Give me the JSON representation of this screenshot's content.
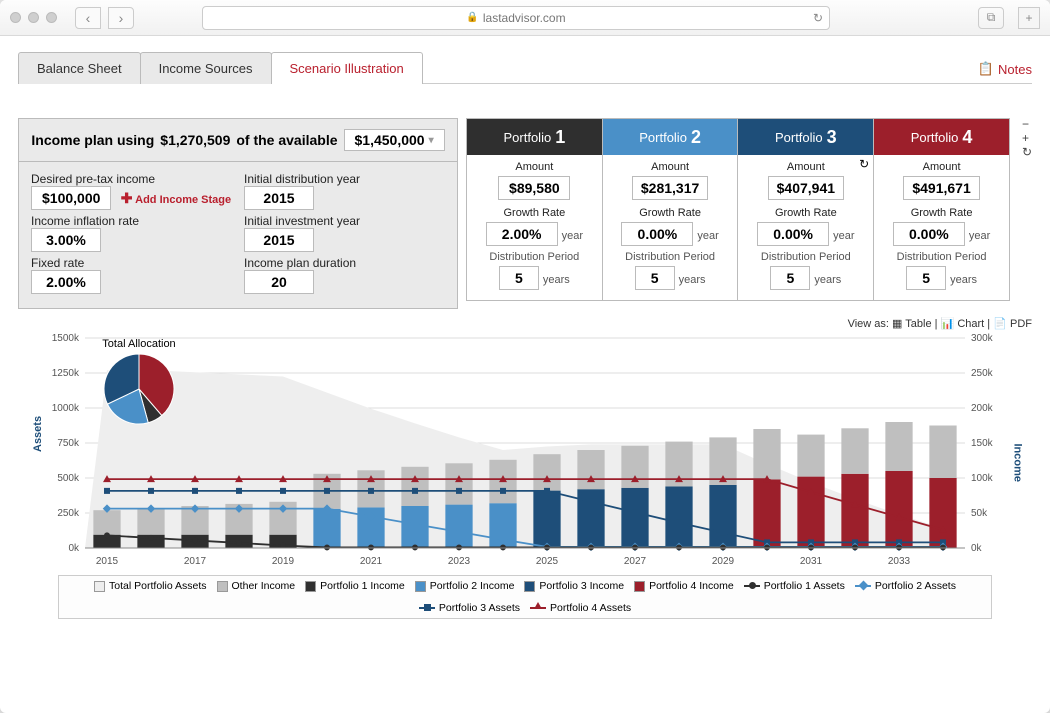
{
  "browser": {
    "url": "lastadvisor.com"
  },
  "tabs": {
    "items": [
      "Balance Sheet",
      "Income Sources",
      "Scenario Illustration"
    ],
    "active_index": 2
  },
  "notes_label": "Notes",
  "plan": {
    "header_prefix": "Income plan using ",
    "used_amount": "$1,270,509",
    "header_mid": " of the available",
    "available_amount": "$1,450,000",
    "fields": {
      "desired_income_label": "Desired pre-tax income",
      "desired_income": "$100,000",
      "add_stage": "Add Income Stage",
      "inflation_label": "Income inflation rate",
      "inflation": "3.00%",
      "fixed_rate_label": "Fixed rate",
      "fixed_rate": "2.00%",
      "init_dist_label": "Initial distribution year",
      "init_dist": "2015",
      "init_invest_label": "Initial investment year",
      "init_invest": "2015",
      "duration_label": "Income plan duration",
      "duration": "20"
    }
  },
  "portfolios": [
    {
      "label_prefix": "Portfolio",
      "num": "1",
      "header_color": "#2f2f2f",
      "amount": "$89,580",
      "growth": "2.00%",
      "dist": "5"
    },
    {
      "label_prefix": "Portfolio",
      "num": "2",
      "header_color": "#4a90c8",
      "amount": "$281,317",
      "growth": "0.00%",
      "dist": "5"
    },
    {
      "label_prefix": "Portfolio",
      "num": "3",
      "header_color": "#1e4e79",
      "amount": "$407,941",
      "growth": "0.00%",
      "dist": "5"
    },
    {
      "label_prefix": "Portfolio",
      "num": "4",
      "header_color": "#9c1f2b",
      "amount": "$491,671",
      "growth": "0.00%",
      "dist": "5"
    }
  ],
  "portfolio_section": {
    "amount_label": "Amount",
    "growth_label": "Growth Rate",
    "growth_suffix": "year",
    "dist_label": "Distribution Period",
    "dist_suffix": "years"
  },
  "viewas": {
    "prefix": "View as:",
    "table": "Table",
    "chart": "Chart",
    "pdf": "PDF"
  },
  "chart": {
    "left_axis_label": "Assets",
    "right_axis_label": "Income",
    "y_left": {
      "min": 0,
      "max": 1500,
      "ticks": [
        "0k",
        "250k",
        "500k",
        "750k",
        "1000k",
        "1250k",
        "1500k"
      ]
    },
    "y_right": {
      "min": 0,
      "max": 300,
      "ticks": [
        "0k",
        "50k",
        "100k",
        "150k",
        "200k",
        "250k",
        "300k"
      ]
    },
    "years": [
      "2015",
      "2016",
      "2017",
      "2018",
      "2019",
      "2020",
      "2021",
      "2022",
      "2023",
      "2024",
      "2025",
      "2026",
      "2027",
      "2028",
      "2029",
      "2030",
      "2031",
      "2032",
      "2033",
      "2034"
    ],
    "x_label_step": 2,
    "colors": {
      "total_assets_area": "#eeeeee",
      "other_income": "#bfbfbf",
      "p1_income": "#2f2f2f",
      "p2_income": "#4a90c8",
      "p3_income": "#1e4e79",
      "p4_income": "#9c1f2b",
      "p1_assets_line": "#2f2f2f",
      "p2_assets_line": "#4a90c8",
      "p3_assets_line": "#1e4e79",
      "p4_assets_line": "#9c1f2b",
      "grid": "#dddddd",
      "baseline": "#888888"
    },
    "total_assets": [
      1270,
      1270,
      1255,
      1240,
      1225,
      1110,
      995,
      890,
      790,
      700,
      725,
      740,
      740,
      740,
      740,
      600,
      470,
      350,
      240,
      140
    ],
    "bars": {
      "other_income": [
        35,
        38,
        41,
        44,
        47,
        50,
        53,
        56,
        59,
        62,
        52,
        56,
        60,
        64,
        68,
        72,
        60,
        65,
        70,
        75
      ],
      "p1_income": [
        19,
        19,
        19,
        19,
        19,
        0,
        0,
        0,
        0,
        0,
        0,
        0,
        0,
        0,
        0,
        0,
        0,
        0,
        0,
        0
      ],
      "p2_income": [
        0,
        0,
        0,
        0,
        0,
        56,
        58,
        60,
        62,
        64,
        0,
        0,
        0,
        0,
        0,
        0,
        0,
        0,
        0,
        0
      ],
      "p3_income": [
        0,
        0,
        0,
        0,
        0,
        0,
        0,
        0,
        0,
        0,
        82,
        84,
        86,
        88,
        90,
        0,
        0,
        0,
        0,
        0
      ],
      "p4_income": [
        0,
        0,
        0,
        0,
        0,
        0,
        0,
        0,
        0,
        0,
        0,
        0,
        0,
        0,
        0,
        98,
        102,
        106,
        110,
        100
      ]
    },
    "lines": {
      "p1_assets": [
        90,
        72,
        54,
        36,
        18,
        4,
        4,
        4,
        4,
        4,
        4,
        4,
        4,
        4,
        4,
        4,
        4,
        4,
        4,
        4
      ],
      "p2_assets": [
        281,
        281,
        281,
        281,
        281,
        281,
        225,
        170,
        115,
        60,
        8,
        8,
        8,
        8,
        8,
        8,
        8,
        8,
        8,
        8
      ],
      "p3_assets": [
        408,
        408,
        408,
        408,
        408,
        408,
        408,
        408,
        408,
        408,
        408,
        330,
        255,
        180,
        110,
        40,
        40,
        40,
        40,
        40
      ],
      "p4_assets": [
        492,
        492,
        492,
        492,
        492,
        492,
        492,
        492,
        492,
        492,
        492,
        492,
        492,
        492,
        492,
        492,
        400,
        310,
        220,
        130
      ]
    },
    "pie": {
      "title": "Total Allocation",
      "slices": [
        {
          "label": "p4",
          "value": 491671,
          "color": "#9c1f2b"
        },
        {
          "label": "p1",
          "value": 89580,
          "color": "#2f2f2f"
        },
        {
          "label": "p2",
          "value": 281317,
          "color": "#4a90c8"
        },
        {
          "label": "p3",
          "value": 407941,
          "color": "#1e4e79"
        }
      ]
    },
    "legend": [
      {
        "label": "Total Portfolio Assets",
        "type": "swatch",
        "color": "#eeeeee"
      },
      {
        "label": "Other Income",
        "type": "swatch",
        "color": "#bfbfbf"
      },
      {
        "label": "Portfolio 1 Income",
        "type": "swatch",
        "color": "#2f2f2f"
      },
      {
        "label": "Portfolio 2 Income",
        "type": "swatch",
        "color": "#4a90c8"
      },
      {
        "label": "Portfolio 3 Income",
        "type": "swatch",
        "color": "#1e4e79"
      },
      {
        "label": "Portfolio 4 Income",
        "type": "swatch",
        "color": "#9c1f2b"
      },
      {
        "label": "Portfolio 1 Assets",
        "type": "line",
        "color": "#2f2f2f",
        "marker": "circle"
      },
      {
        "label": "Portfolio 2 Assets",
        "type": "line",
        "color": "#4a90c8",
        "marker": "diamond"
      },
      {
        "label": "Portfolio 3 Assets",
        "type": "line",
        "color": "#1e4e79",
        "marker": "square"
      },
      {
        "label": "Portfolio 4 Assets",
        "type": "line",
        "color": "#9c1f2b",
        "marker": "triangle"
      }
    ]
  }
}
